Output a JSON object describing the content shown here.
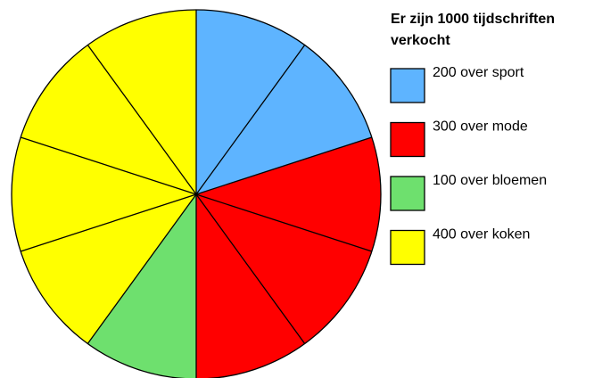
{
  "chart_data": {
    "type": "pie",
    "title": "Er zijn 1000 tijdschriften verkocht",
    "categories": [
      "200 over sport",
      "300 over mode",
      "100 over bloemen",
      "400 over koken"
    ],
    "values": [
      200,
      300,
      100,
      400
    ],
    "colors": [
      "#5eb4ff",
      "#ff0000",
      "#6ee06e",
      "#ffff00"
    ]
  }
}
